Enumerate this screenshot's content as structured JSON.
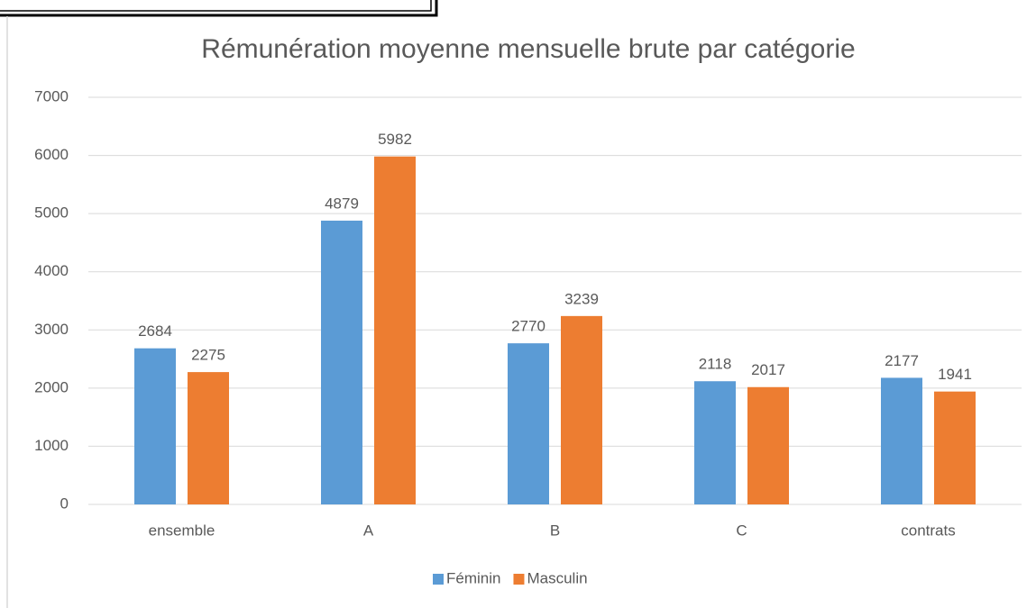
{
  "chart_data": {
    "type": "bar",
    "title": "Rémunération moyenne mensuelle brute par catégorie",
    "categories": [
      "ensemble",
      "A",
      "B",
      "C",
      "contrats"
    ],
    "series": [
      {
        "name": "Féminin",
        "color": "#5b9bd5",
        "values": [
          2684,
          4879,
          2770,
          2118,
          2177
        ]
      },
      {
        "name": "Masculin",
        "color": "#ed7d31",
        "values": [
          2275,
          5982,
          3239,
          2017,
          1941
        ]
      }
    ],
    "ylim": [
      0,
      7000
    ],
    "yticks": [
      0,
      1000,
      2000,
      3000,
      4000,
      5000,
      6000,
      7000
    ],
    "grid": true,
    "legend": "bottom"
  }
}
